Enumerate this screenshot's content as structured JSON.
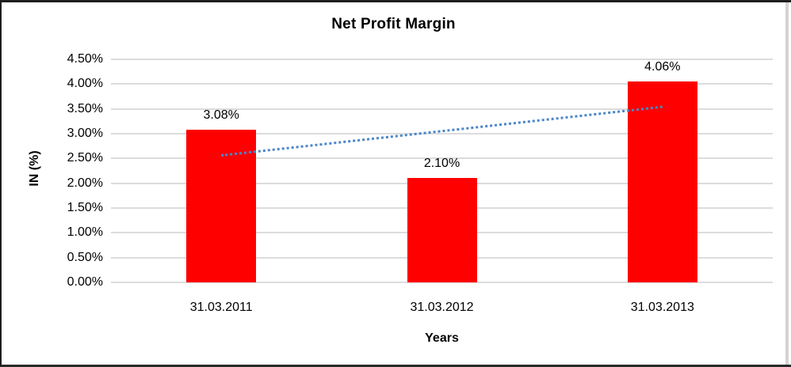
{
  "frame": {
    "border_color": "#1e1e1e",
    "right_edge_color": "#d3d3d3",
    "background": "#ffffff"
  },
  "chart_data": {
    "type": "bar",
    "title": "Net Profit Margin",
    "xlabel": "Years",
    "ylabel": "IN (%)",
    "categories": [
      "31.03.2011",
      "31.03.2012",
      "31.03.2013"
    ],
    "values": [
      3.08,
      2.1,
      4.06
    ],
    "value_labels": [
      "3.08%",
      "2.10%",
      "4.06%"
    ],
    "ylim": [
      0,
      4.5
    ],
    "yticks": [
      {
        "value": 0.0,
        "label": "0.00%"
      },
      {
        "value": 0.5,
        "label": "0.50%"
      },
      {
        "value": 1.0,
        "label": "1.00%"
      },
      {
        "value": 1.5,
        "label": "1.50%"
      },
      {
        "value": 2.0,
        "label": "2.00%"
      },
      {
        "value": 2.5,
        "label": "2.50%"
      },
      {
        "value": 3.0,
        "label": "3.00%"
      },
      {
        "value": 3.5,
        "label": "3.50%"
      },
      {
        "value": 4.0,
        "label": "4.00%"
      },
      {
        "value": 4.5,
        "label": "4.50%"
      }
    ],
    "grid": true,
    "legend": "none",
    "gridline_color": "#dcdcdc",
    "bar_color": "#ff0000",
    "text_color": "#000000",
    "trendline": {
      "type": "linear",
      "style": "dotted",
      "color": "#4a86c8",
      "y_start": 2.59,
      "y_end": 3.57
    }
  }
}
